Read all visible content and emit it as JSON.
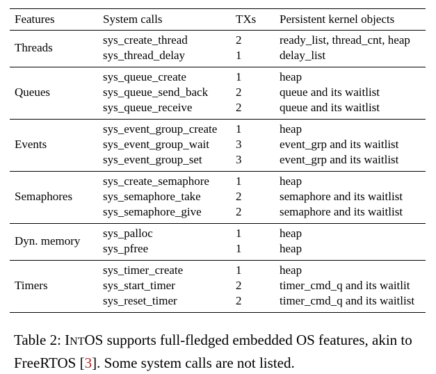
{
  "table": {
    "headers": [
      "Features",
      "System calls",
      "TXs",
      "Persistent kernel objects"
    ],
    "groups": [
      {
        "feature": "Threads",
        "rows": [
          {
            "call": "sys_create_thread",
            "tx": "2",
            "objects": "ready_list, thread_cnt, heap"
          },
          {
            "call": "sys_thread_delay",
            "tx": "1",
            "objects": "delay_list"
          }
        ]
      },
      {
        "feature": "Queues",
        "rows": [
          {
            "call": "sys_queue_create",
            "tx": "1",
            "objects": "heap"
          },
          {
            "call": "sys_queue_send_back",
            "tx": "2",
            "objects": "queue and its waitlist"
          },
          {
            "call": "sys_queue_receive",
            "tx": "2",
            "objects": "queue and its waitlist"
          }
        ]
      },
      {
        "feature": "Events",
        "rows": [
          {
            "call": "sys_event_group_create",
            "tx": "1",
            "objects": "heap"
          },
          {
            "call": "sys_event_group_wait",
            "tx": "3",
            "objects": "event_grp and its waitlist"
          },
          {
            "call": "sys_event_group_set",
            "tx": "3",
            "objects": "event_grp and its waitlist"
          }
        ]
      },
      {
        "feature": "Semaphores",
        "rows": [
          {
            "call": "sys_create_semaphore",
            "tx": "1",
            "objects": "heap"
          },
          {
            "call": "sys_semaphore_take",
            "tx": "2",
            "objects": "semaphore and its waitlist"
          },
          {
            "call": "sys_semaphore_give",
            "tx": "2",
            "objects": "semaphore and its waitlist"
          }
        ]
      },
      {
        "feature": "Dyn. memory",
        "rows": [
          {
            "call": "sys_palloc",
            "tx": "1",
            "objects": "heap"
          },
          {
            "call": "sys_pfree",
            "tx": "1",
            "objects": "heap"
          }
        ]
      },
      {
        "feature": "Timers",
        "rows": [
          {
            "call": "sys_timer_create",
            "tx": "1",
            "objects": "heap"
          },
          {
            "call": "sys_start_timer",
            "tx": "2",
            "objects": "timer_cmd_q and its waitlit"
          },
          {
            "call": "sys_reset_timer",
            "tx": "2",
            "objects": "timer_cmd_q and its waitlist"
          }
        ]
      }
    ]
  },
  "caption": {
    "label": "Table 2:",
    "name_initial": "I",
    "name_smallcaps": "NT",
    "name_rest": "OS",
    "text_before_cite": "supports full-fledged embedded OS features, akin to FreeRTOS [",
    "cite": "3",
    "text_after_cite": "]. Some system calls are not listed."
  }
}
